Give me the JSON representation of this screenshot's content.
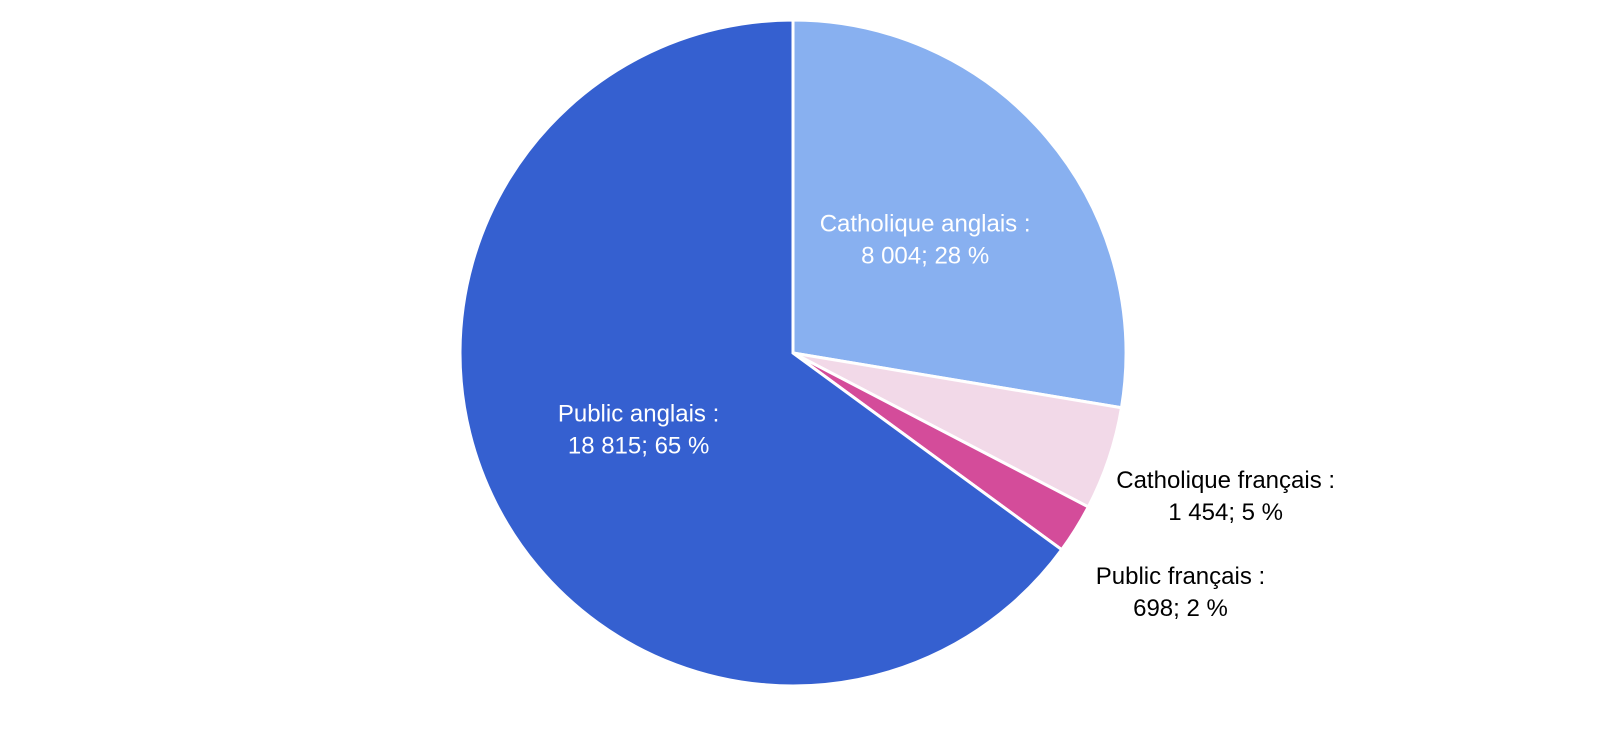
{
  "chart_data": {
    "type": "pie",
    "categories": [
      "Catholique anglais :",
      "Catholique français :",
      "Public français :",
      "Public anglais :"
    ],
    "values": [
      8004,
      1454,
      698,
      18815
    ],
    "value_labels": [
      "8 004; 28 %",
      "1 454; 5 %",
      "698; 2 %",
      "18 815; 65 %"
    ],
    "colors": [
      "#88b0f0",
      "#f2d9e8",
      "#d44c9a",
      "#3560d0"
    ],
    "label_colors": [
      "#ffffff",
      "#000000",
      "#000000",
      "#ffffff"
    ]
  }
}
